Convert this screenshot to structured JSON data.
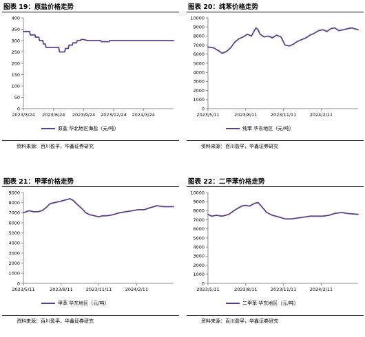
{
  "colors": {
    "series": "#5b3f8c",
    "axis": "#8c8c8c"
  },
  "panels": [
    {
      "title": "图表 19：原盐价格走势",
      "legend": "原盐 华北地区海盐（元/吨）",
      "source": "资料来源：百川盈孚，华鑫证券研究"
    },
    {
      "title": "图表 20：纯苯价格走势",
      "legend": "纯苯 华东地区（元/吨）",
      "source": "资料来源：百川盈孚，华鑫证券研究"
    },
    {
      "title": "图表 21：甲苯价格走势",
      "legend": "甲苯 华东地区（元/吨）",
      "source": "资料来源：百川盈孚，华鑫证券研究"
    },
    {
      "title": "图表 22：二甲苯价格走势",
      "legend": "二甲苯 华东地区（元/吨）",
      "source": "资料来源：百川盈孚，华鑫证券研究"
    }
  ],
  "chart_data": [
    {
      "type": "line",
      "title": "图表 19：原盐价格走势",
      "xlabel": "",
      "ylabel": "",
      "ylim": [
        0,
        400
      ],
      "yticks": [
        0,
        50,
        100,
        150,
        200,
        250,
        300,
        350,
        400
      ],
      "xlim": [
        "2023-03-24",
        "2024-06-24"
      ],
      "xticks": [
        "2023/3/24",
        "2023/6/24",
        "2023/9/24",
        "2023/12/24",
        "2024/3/24"
      ],
      "grid": false,
      "legend_position": "bottom",
      "series": [
        {
          "name": "原盐 华北地区海盐（元/吨）",
          "x": [
            "2023-03-24",
            "2023-04-12",
            "2023-04-14",
            "2023-04-28",
            "2023-04-30",
            "2023-05-10",
            "2023-05-12",
            "2023-05-22",
            "2023-05-24",
            "2023-05-30",
            "2023-06-01",
            "2023-07-10",
            "2023-07-12",
            "2023-07-28",
            "2023-07-30",
            "2023-08-08",
            "2023-08-10",
            "2023-08-20",
            "2023-08-22",
            "2023-09-02",
            "2023-09-04",
            "2023-09-14",
            "2023-09-16",
            "2023-09-24",
            "2023-10-05",
            "2023-11-15",
            "2023-11-17",
            "2023-12-10",
            "2023-12-12",
            "2024-06-24"
          ],
          "y": [
            340,
            340,
            325,
            325,
            315,
            315,
            300,
            300,
            285,
            285,
            270,
            270,
            250,
            250,
            265,
            265,
            280,
            280,
            290,
            290,
            300,
            300,
            305,
            305,
            300,
            300,
            295,
            295,
            300,
            300
          ]
        }
      ]
    },
    {
      "type": "line",
      "title": "图表 20：纯苯价格走势",
      "xlabel": "",
      "ylabel": "",
      "ylim": [
        0,
        10000
      ],
      "yticks": [
        0,
        1000,
        2000,
        3000,
        4000,
        5000,
        6000,
        7000,
        8000,
        9000,
        10000
      ],
      "xlim": [
        "2023-05-11",
        "2024-05-11"
      ],
      "xticks": [
        "2023/5/11",
        "2023/8/11",
        "2023/11/11",
        "2024/2/11"
      ],
      "grid": false,
      "legend_position": "bottom",
      "series": [
        {
          "name": "纯苯 华东地区（元/吨）",
          "x": [
            "2023-05-11",
            "2023-05-25",
            "2023-06-05",
            "2023-06-15",
            "2023-06-25",
            "2023-07-05",
            "2023-07-15",
            "2023-07-25",
            "2023-08-05",
            "2023-08-15",
            "2023-08-25",
            "2023-09-01",
            "2023-09-05",
            "2023-09-10",
            "2023-09-15",
            "2023-09-25",
            "2023-10-05",
            "2023-10-15",
            "2023-10-25",
            "2023-11-05",
            "2023-11-15",
            "2023-11-25",
            "2023-12-05",
            "2023-12-15",
            "2023-12-25",
            "2024-01-05",
            "2024-01-15",
            "2024-01-25",
            "2024-02-05",
            "2024-02-15",
            "2024-02-25",
            "2024-03-05",
            "2024-03-15",
            "2024-03-25",
            "2024-04-05",
            "2024-04-15",
            "2024-04-25",
            "2024-05-11"
          ],
          "y": [
            6800,
            6700,
            6400,
            6100,
            6300,
            6700,
            7300,
            7700,
            7900,
            8200,
            8000,
            8600,
            8900,
            8700,
            8200,
            7900,
            8000,
            7800,
            8100,
            7900,
            7000,
            6900,
            7100,
            7400,
            7600,
            7800,
            8100,
            8300,
            8600,
            8700,
            8500,
            8800,
            8900,
            8600,
            8700,
            8800,
            8900,
            8700
          ]
        }
      ]
    },
    {
      "type": "line",
      "title": "图表 21：甲苯价格走势",
      "xlabel": "",
      "ylabel": "",
      "ylim": [
        0,
        9000
      ],
      "yticks": [
        0,
        1000,
        2000,
        3000,
        4000,
        5000,
        6000,
        7000,
        8000,
        9000
      ],
      "xlim": [
        "2023-05-11",
        "2024-05-11"
      ],
      "xticks": [
        "2023/5/11",
        "2023/8/11",
        "2023/11/11",
        "2024/2/11"
      ],
      "grid": false,
      "legend_position": "bottom",
      "series": [
        {
          "name": "甲苯 华东地区（元/吨）",
          "x": [
            "2023-05-11",
            "2023-05-25",
            "2023-06-05",
            "2023-06-15",
            "2023-06-25",
            "2023-07-05",
            "2023-07-15",
            "2023-07-25",
            "2023-08-05",
            "2023-08-15",
            "2023-08-25",
            "2023-09-01",
            "2023-09-10",
            "2023-09-20",
            "2023-10-01",
            "2023-10-10",
            "2023-10-20",
            "2023-11-01",
            "2023-11-10",
            "2023-11-20",
            "2023-12-01",
            "2023-12-15",
            "2024-01-01",
            "2024-01-15",
            "2024-02-01",
            "2024-02-15",
            "2024-03-01",
            "2024-03-15",
            "2024-04-01",
            "2024-04-15",
            "2024-05-11"
          ],
          "y": [
            7000,
            7200,
            7100,
            7100,
            7200,
            7500,
            7900,
            8000,
            8100,
            8200,
            8300,
            8400,
            8200,
            7800,
            7400,
            7000,
            6800,
            6700,
            6600,
            6700,
            6700,
            6800,
            7000,
            7100,
            7200,
            7300,
            7300,
            7500,
            7700,
            7600,
            7600
          ]
        }
      ]
    },
    {
      "type": "line",
      "title": "图表 22：二甲苯价格走势",
      "xlabel": "",
      "ylabel": "",
      "ylim": [
        0,
        10000
      ],
      "yticks": [
        0,
        1000,
        2000,
        3000,
        4000,
        5000,
        6000,
        7000,
        8000,
        9000,
        10000
      ],
      "xlim": [
        "2023-05-11",
        "2024-05-11"
      ],
      "xticks": [
        "2023/5/11",
        "2023/8/11",
        "2023/11/11",
        "2024/2/11"
      ],
      "grid": false,
      "legend_position": "bottom",
      "series": [
        {
          "name": "二甲苯 华东地区（元/吨）",
          "x": [
            "2023-05-11",
            "2023-05-20",
            "2023-06-01",
            "2023-06-15",
            "2023-07-01",
            "2023-07-10",
            "2023-07-20",
            "2023-08-01",
            "2023-08-10",
            "2023-08-20",
            "2023-09-01",
            "2023-09-10",
            "2023-09-20",
            "2023-10-01",
            "2023-10-15",
            "2023-11-01",
            "2023-11-15",
            "2023-12-01",
            "2023-12-15",
            "2024-01-01",
            "2024-01-15",
            "2024-02-01",
            "2024-02-15",
            "2024-03-01",
            "2024-03-15",
            "2024-04-01",
            "2024-04-15",
            "2024-05-11"
          ],
          "y": [
            7600,
            7400,
            7500,
            7400,
            7600,
            7900,
            8200,
            8500,
            8600,
            8500,
            8800,
            8900,
            8400,
            7800,
            7500,
            7300,
            7100,
            7100,
            7200,
            7300,
            7400,
            7400,
            7400,
            7500,
            7700,
            7800,
            7700,
            7600
          ]
        }
      ]
    }
  ]
}
